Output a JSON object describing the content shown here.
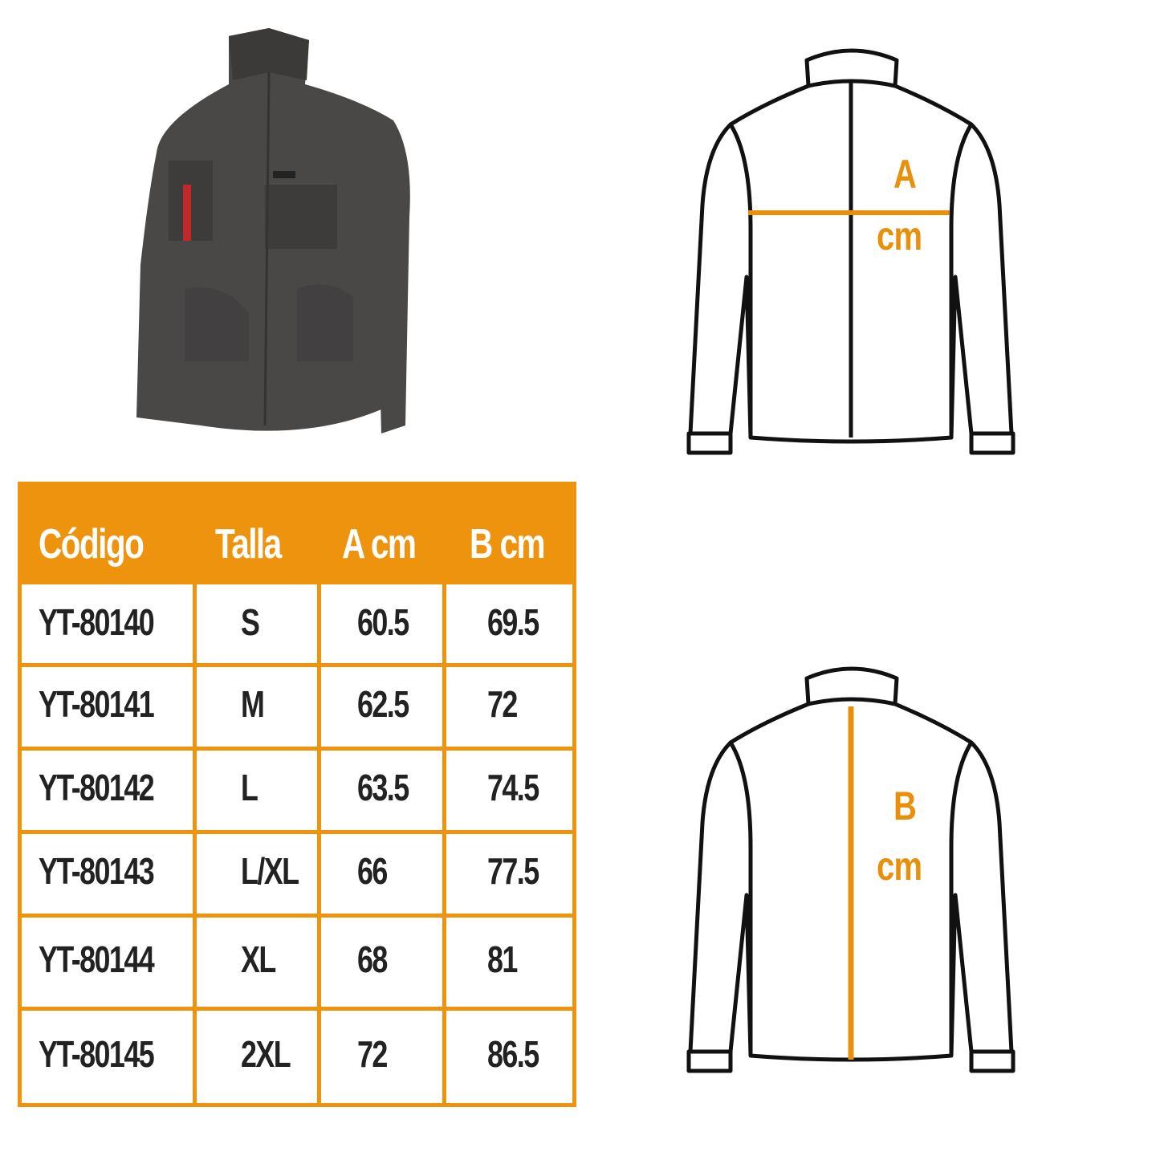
{
  "diagram_a": {
    "letter": "A",
    "unit": "cm"
  },
  "diagram_b": {
    "letter": "B",
    "unit": "cm"
  },
  "colors": {
    "accent": "#ee930e",
    "outline": "#111111",
    "jacket": "#4a4846"
  },
  "table": {
    "headers": [
      "Código",
      "Talla",
      "A cm",
      "B cm"
    ],
    "rows": [
      [
        "YT-80140",
        "S",
        "60.5",
        "69.5"
      ],
      [
        "YT-80141",
        "M",
        "62.5",
        "72"
      ],
      [
        "YT-80142",
        "L",
        "63.5",
        "74.5"
      ],
      [
        "YT-80143",
        "L/XL",
        "66",
        "77.5"
      ],
      [
        "YT-80144",
        "XL",
        "68",
        "81"
      ],
      [
        "YT-80145",
        "2XL",
        "72",
        "86.5"
      ]
    ]
  }
}
